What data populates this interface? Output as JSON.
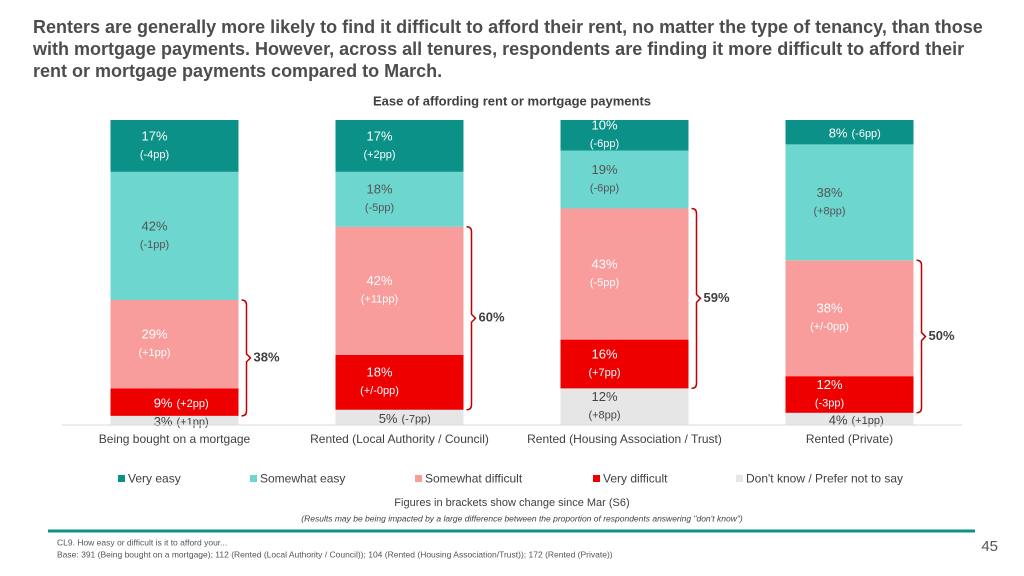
{
  "title": "Renters are generally more likely to find it difficult to afford their rent, no matter the type of tenancy, than those with mortgage payments. However, across all tenures, respondents are finding it more difficult to afford their rent or mortgage payments compared to March.",
  "chart_data": {
    "type": "bar",
    "stacked": true,
    "title": "Ease of affording rent or mortgage payments",
    "categories": [
      "Being bought on a mortgage",
      "Rented (Local Authority / Council)",
      "Rented (Housing Association / Trust)",
      "Rented (Private)"
    ],
    "ylim": [
      0,
      100
    ],
    "series": [
      {
        "name": "Very easy",
        "color": "#0c9189",
        "text_color": "#ffffff",
        "values": [
          17,
          17,
          10,
          8
        ],
        "value_labels": [
          "17%",
          "17%",
          "10%",
          "8%"
        ],
        "changes": [
          "(-4pp)",
          "(+2pp)",
          "(-6pp)",
          "(-6pp)"
        ]
      },
      {
        "name": "Somewhat easy",
        "color": "#6dd6cf",
        "text_color": "#555555",
        "values": [
          42,
          18,
          19,
          38
        ],
        "value_labels": [
          "42%",
          "18%",
          "19%",
          "38%"
        ],
        "changes": [
          "(-1pp)",
          "(-5pp)",
          "(-6pp)",
          "(+8pp)"
        ]
      },
      {
        "name": "Somewhat difficult",
        "color": "#f99c9c",
        "text_color": "#ffffff",
        "values": [
          29,
          42,
          43,
          38
        ],
        "value_labels": [
          "29%",
          "42%",
          "43%",
          "38%"
        ],
        "changes": [
          "(+1pp)",
          "(+11pp)",
          "(-5pp)",
          "(+/-0pp)"
        ]
      },
      {
        "name": "Very difficult",
        "color": "#ee0000",
        "text_color": "#ffffff",
        "values": [
          9,
          18,
          16,
          12
        ],
        "value_labels": [
          "9%",
          "18%",
          "16%",
          "12%"
        ],
        "changes": [
          "(+2pp)",
          "(+/-0pp)",
          "(+7pp)",
          "(-3pp)"
        ]
      },
      {
        "name": "Don't know / Prefer not to say",
        "color": "#e6e6e6",
        "text_color": "#444444",
        "values": [
          3,
          5,
          12,
          4
        ],
        "value_labels": [
          "3%",
          "5%",
          "12%",
          "4%"
        ],
        "changes": [
          "(+1pp)",
          "(-7pp)",
          "(+8pp)",
          "(+1pp)"
        ]
      }
    ],
    "brackets": {
      "color": "#c00000",
      "values": [
        38,
        60,
        59,
        50
      ],
      "value_labels": [
        "38%",
        "60%",
        "59%",
        "50%"
      ]
    },
    "note": "Figures in brackets show change since Mar (S6)",
    "caveat": "(Results may be being impacted by a large difference between the proportion of respondents answering \"don't know\")"
  },
  "footer": {
    "question": "CL9. How easy or difficult is it to afford your...",
    "base": "Base: 391 (Being bought on a mortgage); 112 (Rented (Local Authority / Council)); 104 (Rented (Housing Association/Trust)); 172 (Rented (Private))",
    "page_number": "45"
  }
}
